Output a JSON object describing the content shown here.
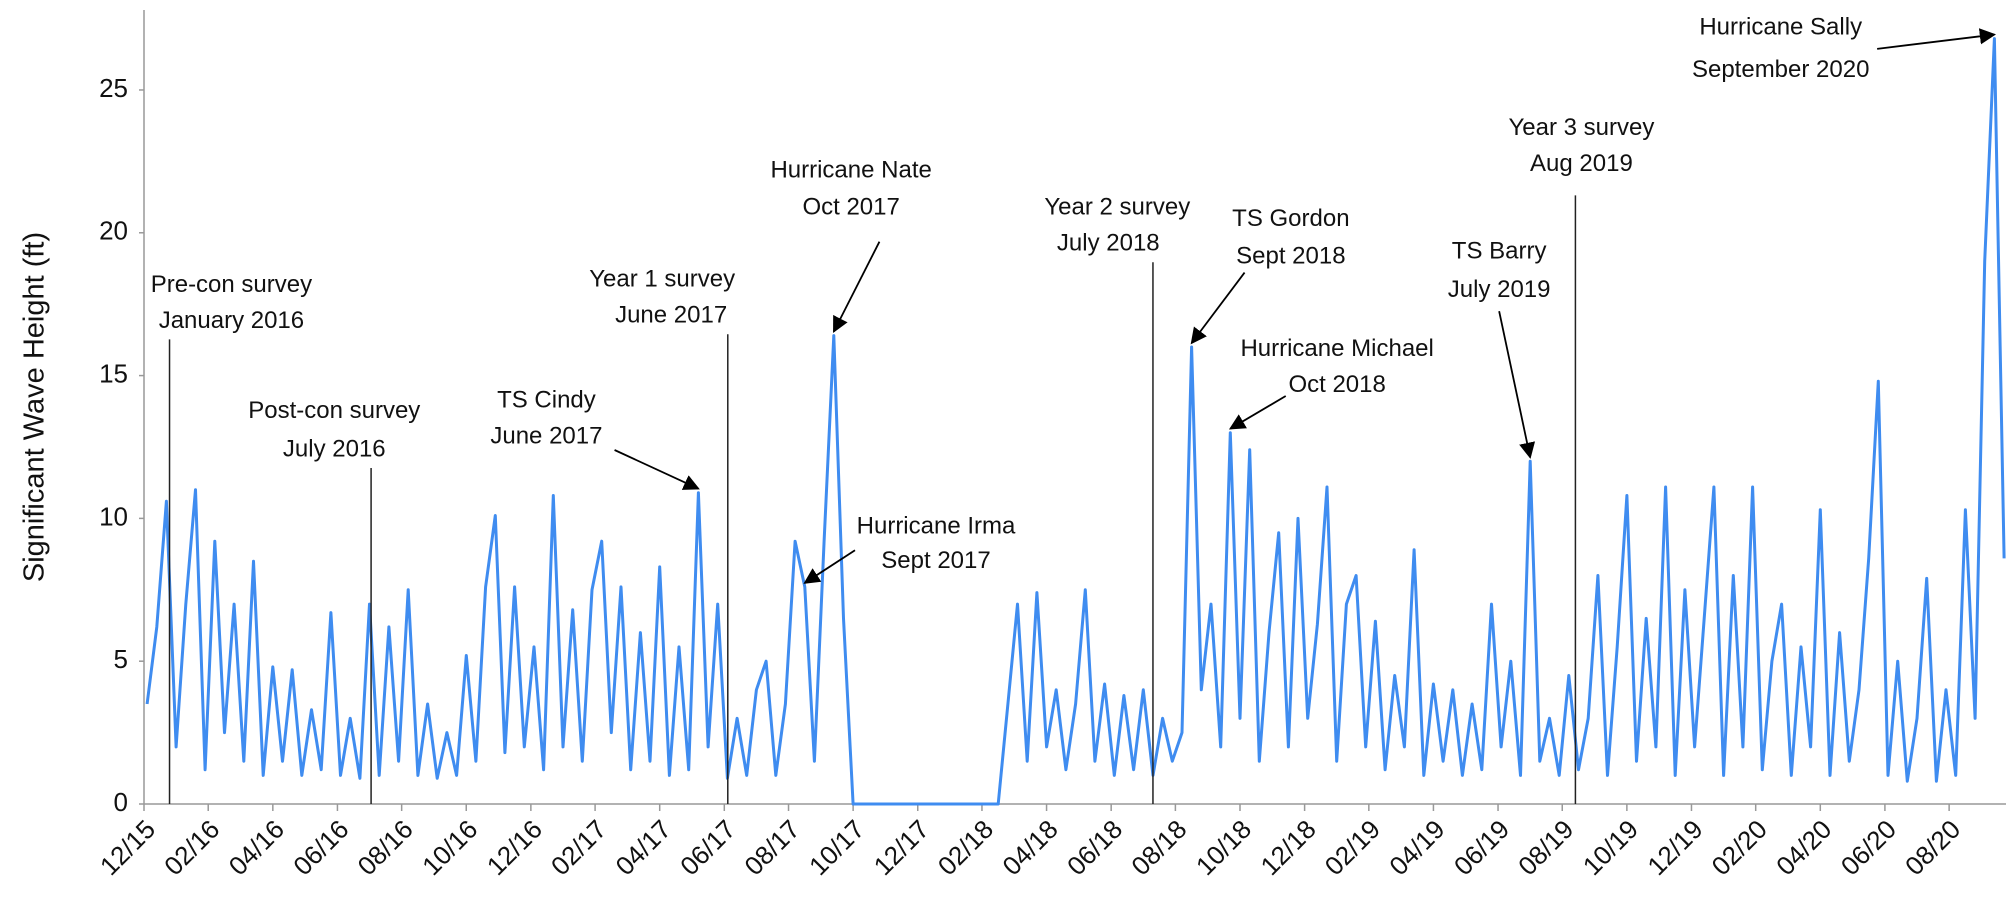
{
  "chart_data": {
    "type": "line",
    "y_label": "Significant Wave Height (ft)",
    "color": "#3f8cf0",
    "xlim": [
      2015.917,
      2020.73
    ],
    "ylim": [
      0,
      27.8
    ],
    "yticks": [
      0,
      5,
      10,
      15,
      20,
      25
    ],
    "xticks": [
      {
        "value": 2015.917,
        "label": "12/15"
      },
      {
        "value": 2016.083,
        "label": "02/16"
      },
      {
        "value": 2016.25,
        "label": "04/16"
      },
      {
        "value": 2016.417,
        "label": "06/16"
      },
      {
        "value": 2016.583,
        "label": "08/16"
      },
      {
        "value": 2016.75,
        "label": "10/16"
      },
      {
        "value": 2016.917,
        "label": "12/16"
      },
      {
        "value": 2017.083,
        "label": "02/17"
      },
      {
        "value": 2017.25,
        "label": "04/17"
      },
      {
        "value": 2017.417,
        "label": "06/17"
      },
      {
        "value": 2017.583,
        "label": "08/17"
      },
      {
        "value": 2017.75,
        "label": "10/17"
      },
      {
        "value": 2017.917,
        "label": "12/17"
      },
      {
        "value": 2018.083,
        "label": "02/18"
      },
      {
        "value": 2018.25,
        "label": "04/18"
      },
      {
        "value": 2018.417,
        "label": "06/18"
      },
      {
        "value": 2018.583,
        "label": "08/18"
      },
      {
        "value": 2018.75,
        "label": "10/18"
      },
      {
        "value": 2018.917,
        "label": "12/18"
      },
      {
        "value": 2019.083,
        "label": "02/19"
      },
      {
        "value": 2019.25,
        "label": "04/19"
      },
      {
        "value": 2019.417,
        "label": "06/19"
      },
      {
        "value": 2019.583,
        "label": "08/19"
      },
      {
        "value": 2019.75,
        "label": "10/19"
      },
      {
        "value": 2019.917,
        "label": "12/19"
      },
      {
        "value": 2020.083,
        "label": "02/20"
      },
      {
        "value": 2020.25,
        "label": "04/20"
      },
      {
        "value": 2020.417,
        "label": "06/20"
      },
      {
        "value": 2020.583,
        "label": "08/20"
      }
    ],
    "x": [
      2015.925,
      2015.95,
      2015.975,
      2016.0,
      2016.025,
      2016.05,
      2016.075,
      2016.1,
      2016.125,
      2016.15,
      2016.175,
      2016.2,
      2016.225,
      2016.25,
      2016.275,
      2016.3,
      2016.325,
      2016.35,
      2016.375,
      2016.4,
      2016.425,
      2016.45,
      2016.475,
      2016.5,
      2016.525,
      2016.55,
      2016.575,
      2016.6,
      2016.625,
      2016.65,
      2016.675,
      2016.7,
      2016.725,
      2016.75,
      2016.775,
      2016.8,
      2016.825,
      2016.85,
      2016.875,
      2016.9,
      2016.925,
      2016.95,
      2016.975,
      2017.0,
      2017.025,
      2017.05,
      2017.075,
      2017.1,
      2017.125,
      2017.15,
      2017.175,
      2017.2,
      2017.225,
      2017.25,
      2017.275,
      2017.3,
      2017.325,
      2017.35,
      2017.375,
      2017.4,
      2017.425,
      2017.45,
      2017.475,
      2017.5,
      2017.525,
      2017.55,
      2017.575,
      2017.6,
      2017.625,
      2017.65,
      2017.675,
      2017.7,
      2017.725,
      2017.75,
      2017.775,
      2017.8,
      2017.825,
      2017.85,
      2017.875,
      2017.9,
      2017.925,
      2017.95,
      2017.975,
      2018.0,
      2018.025,
      2018.05,
      2018.075,
      2018.1,
      2018.125,
      2018.15,
      2018.175,
      2018.2,
      2018.225,
      2018.25,
      2018.275,
      2018.3,
      2018.325,
      2018.35,
      2018.375,
      2018.4,
      2018.425,
      2018.45,
      2018.475,
      2018.5,
      2018.525,
      2018.55,
      2018.575,
      2018.6,
      2018.625,
      2018.65,
      2018.675,
      2018.7,
      2018.725,
      2018.75,
      2018.775,
      2018.8,
      2018.825,
      2018.85,
      2018.875,
      2018.9,
      2018.925,
      2018.95,
      2018.975,
      2019.0,
      2019.025,
      2019.05,
      2019.075,
      2019.1,
      2019.125,
      2019.15,
      2019.175,
      2019.2,
      2019.225,
      2019.25,
      2019.275,
      2019.3,
      2019.325,
      2019.35,
      2019.375,
      2019.4,
      2019.425,
      2019.45,
      2019.475,
      2019.5,
      2019.525,
      2019.55,
      2019.575,
      2019.6,
      2019.625,
      2019.65,
      2019.675,
      2019.7,
      2019.725,
      2019.75,
      2019.775,
      2019.8,
      2019.825,
      2019.85,
      2019.875,
      2019.9,
      2019.925,
      2019.95,
      2019.975,
      2020.0,
      2020.025,
      2020.05,
      2020.075,
      2020.1,
      2020.125,
      2020.15,
      2020.175,
      2020.2,
      2020.225,
      2020.25,
      2020.275,
      2020.3,
      2020.325,
      2020.35,
      2020.375,
      2020.4,
      2020.425,
      2020.45,
      2020.475,
      2020.5,
      2020.525,
      2020.55,
      2020.575,
      2020.6,
      2020.625,
      2020.65,
      2020.675,
      2020.7,
      2020.725
    ],
    "values": [
      3.5,
      6.2,
      10.6,
      2.0,
      7.0,
      11.0,
      1.2,
      9.2,
      2.5,
      7.0,
      1.5,
      8.5,
      1.0,
      4.8,
      1.5,
      4.7,
      1.0,
      3.3,
      1.2,
      6.7,
      1.0,
      3.0,
      0.9,
      7.0,
      1.0,
      6.2,
      1.5,
      7.5,
      1.0,
      3.5,
      0.9,
      2.5,
      1.0,
      5.2,
      1.5,
      7.6,
      10.1,
      1.8,
      7.6,
      2.0,
      5.5,
      1.2,
      10.8,
      2.0,
      6.8,
      1.5,
      7.5,
      9.2,
      2.5,
      7.6,
      1.2,
      6.0,
      1.5,
      8.3,
      1.0,
      5.5,
      1.2,
      10.9,
      2.0,
      7.0,
      0.9,
      3.0,
      1.0,
      4.0,
      5.0,
      1.0,
      3.5,
      9.2,
      7.6,
      1.5,
      9.2,
      16.4,
      6.5,
      0,
      0,
      0,
      0,
      0,
      0,
      0,
      0,
      0,
      0,
      0,
      0,
      0,
      0,
      0,
      0,
      3.5,
      7.0,
      1.5,
      7.4,
      2.0,
      4.0,
      1.2,
      3.5,
      7.5,
      1.5,
      4.2,
      1.0,
      3.8,
      1.2,
      4.0,
      1.0,
      3.0,
      1.5,
      2.5,
      16.0,
      4.0,
      7.0,
      2.0,
      13.0,
      3.0,
      12.4,
      1.5,
      6.0,
      9.5,
      2.0,
      10.0,
      3.0,
      6.3,
      11.1,
      1.5,
      7.0,
      8.0,
      2.0,
      6.4,
      1.2,
      4.5,
      2.0,
      8.9,
      1.0,
      4.2,
      1.5,
      4.0,
      1.0,
      3.5,
      1.2,
      7.0,
      2.0,
      5.0,
      1.0,
      12.0,
      1.5,
      3.0,
      1.0,
      4.5,
      1.2,
      3.0,
      8.0,
      1.0,
      5.5,
      10.8,
      1.5,
      6.5,
      2.0,
      11.1,
      1.0,
      7.5,
      2.0,
      6.5,
      11.1,
      1.0,
      8.0,
      2.0,
      11.1,
      1.2,
      5.0,
      7.0,
      1.0,
      5.5,
      2.0,
      10.3,
      1.0,
      6.0,
      1.5,
      4.0,
      8.6,
      14.8,
      1.0,
      5.0,
      0.8,
      3.0,
      7.9,
      0.8,
      4.0,
      1.0,
      10.3,
      3.0,
      19.0,
      26.8,
      8.6
    ],
    "annotations": [
      {
        "text": [
          "Pre-con survey",
          "January 2016"
        ],
        "x": 2015.983
      },
      {
        "text": [
          "Post-con survey",
          "July 2016"
        ],
        "x": 2016.504
      },
      {
        "text": [
          "TS Cindy",
          "June 2017"
        ],
        "x": 2017.35,
        "y": 10.9
      },
      {
        "text": [
          "Year 1 survey",
          "June 2017"
        ],
        "x": 2017.426
      },
      {
        "text": [
          "Hurricane Nate",
          "Oct 2017"
        ],
        "x": 2017.7,
        "y": 16.4
      },
      {
        "text": [
          "Hurricane Irma",
          "Sept 2017"
        ],
        "x": 2017.625,
        "y": 7.6
      },
      {
        "text": [
          "Year 2 survey",
          "July 2018"
        ],
        "x": 2018.525
      },
      {
        "text": [
          "TS Gordon",
          "Sept 2018"
        ],
        "x": 2018.625,
        "y": 16.0
      },
      {
        "text": [
          "Hurricane Michael",
          "Oct 2018"
        ],
        "x": 2018.725,
        "y": 13.0
      },
      {
        "text": [
          "TS Barry",
          "July 2019"
        ],
        "x": 2019.5,
        "y": 12.0
      },
      {
        "text": [
          "Year 3 survey",
          "Aug 2019"
        ],
        "x": 2019.617
      },
      {
        "text": [
          "Hurricane Sally",
          "September 2020"
        ],
        "x": 2020.7,
        "y": 26.8
      }
    ]
  }
}
